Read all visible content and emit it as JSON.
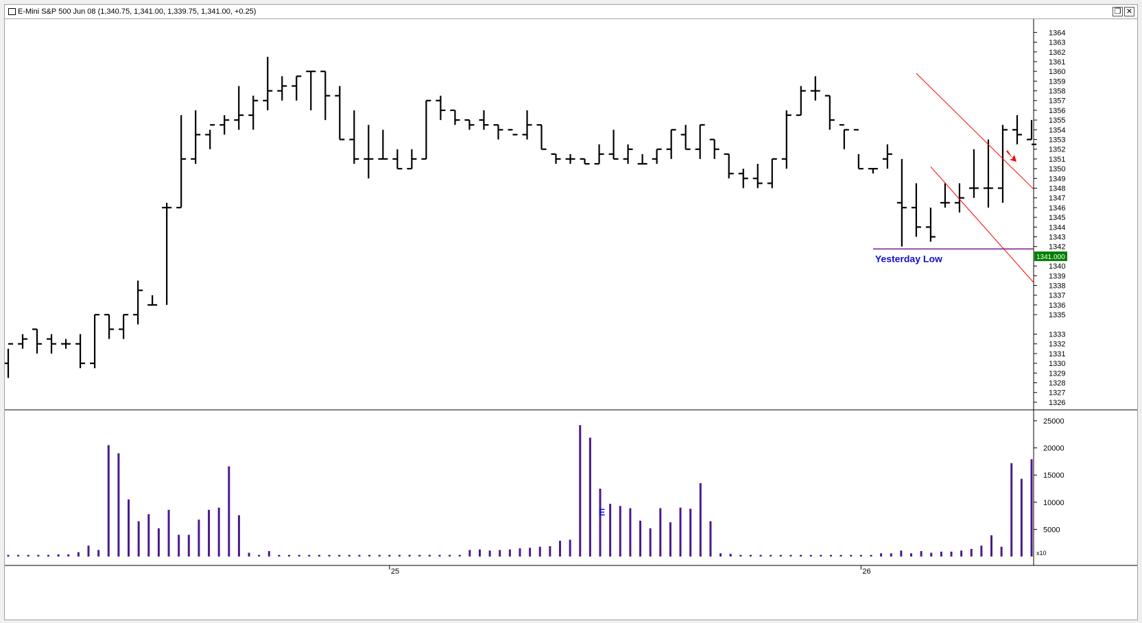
{
  "window": {
    "title": "E-Mini S&P 500 Jun 08 (1,340.75, 1,341.00, 1,339.75, 1,341.00, +0.25)",
    "restore_icon": "restore-window-icon",
    "close_icon": "close-window-icon"
  },
  "chart_data": [
    {
      "type": "ohlc",
      "instrument": "E-Mini S&P 500 Jun 08",
      "y_axis_ticks": [
        1326,
        1327,
        1328,
        1329,
        1330,
        1331,
        1332,
        1333,
        1335,
        1336,
        1337,
        1338,
        1339,
        1340,
        1342,
        1343,
        1344,
        1345,
        1346,
        1347,
        1348,
        1349,
        1350,
        1351,
        1352,
        1353,
        1354,
        1355,
        1356,
        1357,
        1358,
        1359,
        1360,
        1361,
        1362,
        1363,
        1364
      ],
      "ylim": [
        1325.5,
        1364.8
      ],
      "x_labels": [
        {
          "index": 38,
          "label": "25"
        },
        {
          "index": 85,
          "label": "26"
        }
      ],
      "last_price_label": "1341.000",
      "bars": [
        [
          1330.0,
          1328.5,
          1331.5,
          1332.0
        ],
        [
          1332.0,
          1331.5,
          1333.0,
          1332.5
        ],
        [
          1333.5,
          1331.0,
          1333.5,
          1332.0
        ],
        [
          1332.5,
          1331.0,
          1333.0,
          1332.0
        ],
        [
          1332.0,
          1331.5,
          1332.5,
          1332.0
        ],
        [
          1332.0,
          1329.5,
          1333.0,
          1330.0
        ],
        [
          1330.0,
          1329.5,
          1335.0,
          1335.0
        ],
        [
          1335.0,
          1332.5,
          1335.0,
          1333.5
        ],
        [
          1333.5,
          1332.5,
          1335.0,
          1335.0
        ],
        [
          1335.0,
          1334.0,
          1338.5,
          1337.5
        ],
        [
          1336.0,
          1336.0,
          1337.0,
          1336.0
        ],
        [
          1346.0,
          1336.0,
          1346.5,
          1346.0
        ],
        [
          1346.0,
          1346.0,
          1355.5,
          1351.0
        ],
        [
          1351.0,
          1350.5,
          1356.0,
          1353.5
        ],
        [
          1353.5,
          1352.0,
          1354.0,
          1354.5
        ],
        [
          1354.5,
          1353.5,
          1355.5,
          1355.0
        ],
        [
          1355.0,
          1354.0,
          1358.5,
          1355.5
        ],
        [
          1355.5,
          1354.0,
          1357.5,
          1357.0
        ],
        [
          1357.0,
          1356.0,
          1361.5,
          1358.0
        ],
        [
          1358.0,
          1357.0,
          1359.5,
          1358.5
        ],
        [
          1358.5,
          1357.0,
          1359.5,
          1359.5
        ],
        [
          1360.0,
          1356.0,
          1360.0,
          1360.0
        ],
        [
          1360.0,
          1355.0,
          1360.0,
          1357.5
        ],
        [
          1357.5,
          1353.0,
          1358.5,
          1353.0
        ],
        [
          1353.0,
          1350.5,
          1356.0,
          1351.0
        ],
        [
          1351.0,
          1349.0,
          1354.5,
          1351.0
        ],
        [
          1351.0,
          1351.0,
          1354.0,
          1351.0
        ],
        [
          1351.0,
          1350.0,
          1352.0,
          1350.0
        ],
        [
          1350.0,
          1350.0,
          1352.0,
          1351.0
        ],
        [
          1351.0,
          1351.0,
          1357.0,
          1357.0
        ],
        [
          1357.0,
          1355.0,
          1357.5,
          1356.0
        ],
        [
          1356.0,
          1354.5,
          1356.0,
          1355.0
        ],
        [
          1355.0,
          1354.0,
          1355.0,
          1354.5
        ],
        [
          1355.0,
          1354.0,
          1356.0,
          1354.5
        ],
        [
          1354.5,
          1353.0,
          1354.5,
          1354.0
        ],
        [
          1354.0,
          1353.0,
          1353.0,
          1353.5
        ],
        [
          1353.5,
          1353.0,
          1356.0,
          1354.5
        ],
        [
          1354.5,
          1352.0,
          1354.5,
          1352.0
        ],
        [
          1351.5,
          1350.5,
          1351.5,
          1351.0
        ],
        [
          1351.0,
          1350.5,
          1351.5,
          1351.0
        ],
        [
          1351.0,
          1350.5,
          1351.0,
          1350.5
        ],
        [
          1350.5,
          1350.5,
          1352.5,
          1351.5
        ],
        [
          1351.5,
          1351.0,
          1354.0,
          1351.0
        ],
        [
          1351.0,
          1350.5,
          1352.5,
          1352.0
        ],
        [
          1350.5,
          1350.5,
          1351.5,
          1350.5
        ],
        [
          1351.0,
          1350.5,
          1352.0,
          1352.0
        ],
        [
          1352.0,
          1351.0,
          1354.0,
          1354.0
        ],
        [
          1353.5,
          1352.0,
          1354.5,
          1352.0
        ],
        [
          1352.0,
          1351.0,
          1354.5,
          1354.5
        ],
        [
          1353.0,
          1351.0,
          1353.0,
          1352.0
        ],
        [
          1351.5,
          1349.0,
          1351.5,
          1349.5
        ],
        [
          1349.5,
          1348.0,
          1350.0,
          1349.0
        ],
        [
          1349.0,
          1348.0,
          1350.5,
          1348.5
        ],
        [
          1348.5,
          1348.0,
          1351.0,
          1351.0
        ],
        [
          1351.0,
          1350.0,
          1356.0,
          1355.5
        ],
        [
          1355.5,
          1355.5,
          1358.5,
          1358.0
        ],
        [
          1358.0,
          1357.0,
          1359.5,
          1358.0
        ],
        [
          1357.5,
          1354.0,
          1357.5,
          1355.0
        ],
        [
          1354.5,
          1352.0,
          1354.0,
          1354.0
        ],
        [
          1354.0,
          1350.0,
          1351.5,
          1350.0
        ],
        [
          1350.0,
          1349.5,
          1350.0,
          1350.0
        ],
        [
          1351.0,
          1350.0,
          1352.5,
          1351.5
        ],
        [
          1346.5,
          1342.0,
          1351.0,
          1346.0
        ],
        [
          1346.0,
          1343.0,
          1348.5,
          1344.0
        ],
        [
          1344.0,
          1342.5,
          1346.0,
          1343.0
        ],
        [
          1346.5,
          1346.0,
          1348.5,
          1346.5
        ],
        [
          1346.5,
          1345.5,
          1348.5,
          1347.0
        ],
        [
          1348.0,
          1347.0,
          1352.0,
          1348.0
        ],
        [
          1348.0,
          1346.0,
          1353.0,
          1348.0
        ],
        [
          1348.0,
          1346.5,
          1354.5,
          1354.0
        ],
        [
          1354.0,
          1352.5,
          1355.5,
          1353.5
        ],
        [
          1353.0,
          1353.0,
          1355.0,
          1352.5
        ]
      ],
      "bar_notes": "OHLC bars as [open, low, high, close]"
    },
    {
      "type": "bar",
      "name": "volume",
      "y_axis_ticks": [
        5000,
        10000,
        15000,
        20000,
        25000
      ],
      "ylim": [
        0,
        26500
      ],
      "multiplier_label": "x10",
      "marker_label": "E",
      "marker_index": 59,
      "values": [
        300,
        300,
        300,
        300,
        300,
        400,
        400,
        800,
        2000,
        1200,
        20500,
        19000,
        10500,
        6500,
        7800,
        5200,
        8600,
        4000,
        4000,
        6800,
        8600,
        9000,
        16600,
        7600,
        700,
        300,
        1000,
        300,
        300,
        300,
        300,
        300,
        300,
        300,
        300,
        300,
        300,
        300,
        300,
        300,
        300,
        300,
        300,
        300,
        300,
        300,
        1200,
        1300,
        1100,
        1200,
        1300,
        1500,
        1600,
        1800,
        1900,
        2900,
        3100,
        24200,
        21900,
        12500,
        9700,
        9300,
        8900,
        6600,
        5200,
        8900,
        6300,
        9000,
        8800,
        13500,
        6500,
        600,
        500,
        300,
        300,
        300,
        300,
        300,
        300,
        300,
        300,
        300,
        300,
        300,
        300,
        300,
        300,
        600,
        600,
        1100,
        600,
        1000,
        700,
        900,
        900,
        1100,
        1400,
        2000,
        3900,
        1800,
        17200,
        14300,
        17900
      ]
    }
  ],
  "annotations": {
    "yesterday_low_label": "Yesterday Low",
    "yesterday_low_price": 1341.75
  },
  "colors": {
    "bars": "#000000",
    "volume": "#4b1a8c",
    "channel": "#ff0000",
    "yesterday_low_line": "#7a1a8c",
    "yesterday_low_text": "#1010d0",
    "last_price_bg": "#008000",
    "arrow": "#ff0000"
  }
}
